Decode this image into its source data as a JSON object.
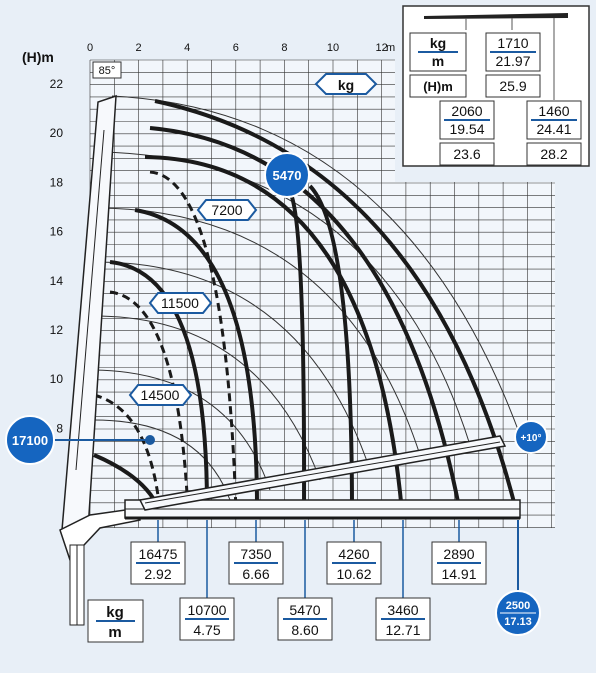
{
  "axes": {
    "y_unit": "(H)m",
    "x_unit": "m",
    "x_ticks": [
      "0",
      "2",
      "4",
      "6",
      "8",
      "10",
      "12"
    ],
    "y_ticks": [
      "8",
      "10",
      "12",
      "14",
      "16",
      "18",
      "20",
      "22"
    ],
    "angle_label": "85°"
  },
  "unit_box": {
    "kg": "kg"
  },
  "inset": {
    "kg_label": "kg",
    "m_label": "m",
    "h_label": "(H)m",
    "top_load": "1710",
    "top_reach": "21.97",
    "top_height": "25.9",
    "left_load": "2060",
    "left_reach": "19.54",
    "left_height": "23.6",
    "right_load": "1460",
    "right_reach": "24.41",
    "right_height": "28.2"
  },
  "badges": {
    "highlight_5470": "5470",
    "left_17100": "17100",
    "plus10": "+10°",
    "load_2500": "2500",
    "reach_17_13": "17.13"
  },
  "curve_labels": {
    "l7200": "7200",
    "l11500": "11500",
    "l14500": "14500"
  },
  "legend": {
    "kg": "kg",
    "m": "m"
  },
  "bottom_loads": [
    {
      "load": "16475",
      "reach": "2.92"
    },
    {
      "load": "10700",
      "reach": "4.75"
    },
    {
      "load": "7350",
      "reach": "6.66"
    },
    {
      "load": "5470",
      "reach": "8.60"
    },
    {
      "load": "4260",
      "reach": "10.62"
    },
    {
      "load": "3460",
      "reach": "12.71"
    },
    {
      "load": "2890",
      "reach": "14.91"
    }
  ],
  "colors": {
    "accent": "#1b5aa0",
    "highlight": "#1565c0",
    "line": "#1a1a1a"
  }
}
